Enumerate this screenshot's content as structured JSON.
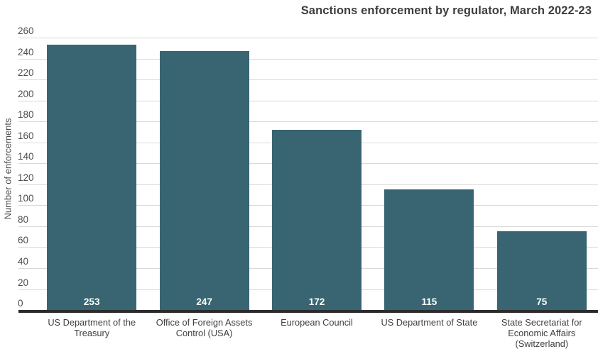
{
  "title": "Sanctions enforcement by regulator, March 2022-23",
  "colors": {
    "bar": "#386571",
    "grid": "#d9d9d9",
    "axis_line": "#2b2b2b",
    "title_text": "#3d3d3d",
    "tick_text": "#4d4d4d",
    "category_text": "#3f3f3f",
    "value_label_text": "#ffffff",
    "background": "#ffffff"
  },
  "chart_data": {
    "type": "bar",
    "title": "Sanctions enforcement by regulator, March 2022-23",
    "categories": [
      "US Department of the Treasury",
      "Office of Foreign Assets Control (USA)",
      "European Council",
      "US Department of State",
      "State Secretariat for Economic Affairs (Switzerland)"
    ],
    "values": [
      253,
      247,
      172,
      115,
      75
    ],
    "bar_labels": [
      "253",
      "247",
      "172",
      "115",
      "75"
    ],
    "xlabel": "",
    "ylabel": "Number of enforcements",
    "ylim": [
      0,
      260
    ],
    "ytick_step": 20,
    "yticks": [
      0,
      20,
      40,
      60,
      80,
      100,
      120,
      140,
      160,
      180,
      200,
      220,
      240,
      260
    ],
    "grid": true,
    "legend": "none",
    "value_label_position": "inside-bottom"
  }
}
